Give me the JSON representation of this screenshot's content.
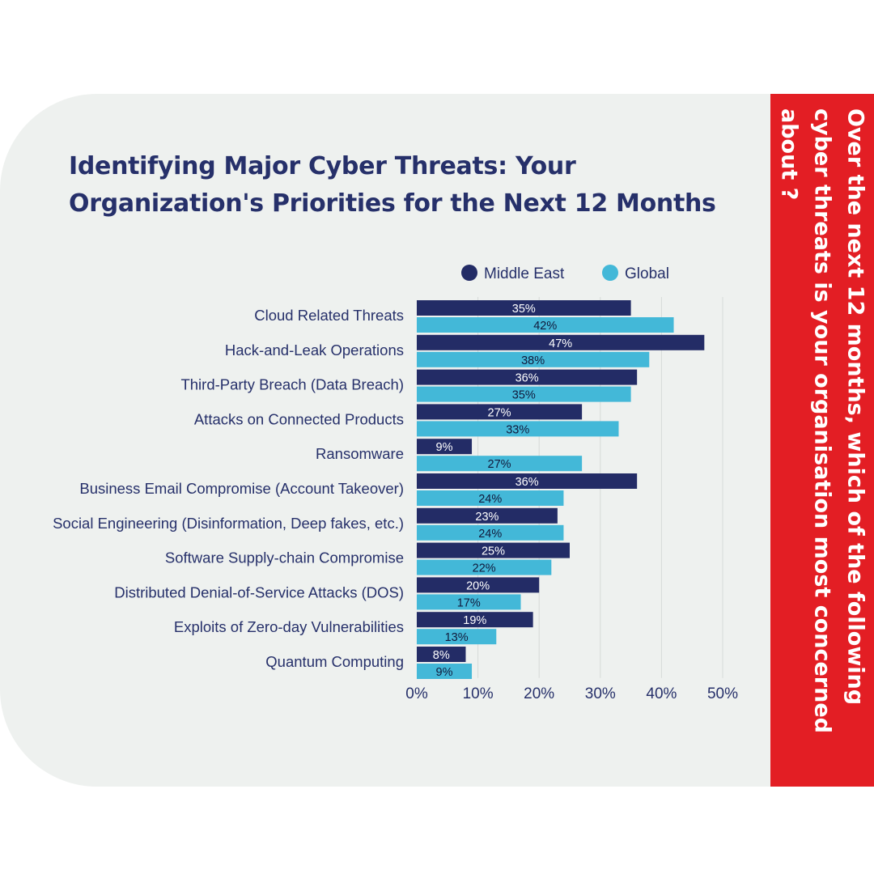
{
  "title": "Identifying Major Cyber Threats: Your Organization's Priorities for the Next 12 Months",
  "side_question": "Over the next 12 months, which of the following cyber threats is your organisation most concerned about ?",
  "colors": {
    "middle_east": "#232c66",
    "global": "#43b8d8",
    "accent_red": "#e31e24",
    "panel_bg": "#eef1ef",
    "text": "#26306a"
  },
  "chart_data": {
    "type": "bar",
    "orientation": "horizontal",
    "categories": [
      "Cloud Related Threats",
      "Hack-and-Leak Operations",
      "Third-Party Breach (Data Breach)",
      "Attacks on Connected Products",
      "Ransomware",
      "Business Email Compromise (Account Takeover)",
      "Social Engineering (Disinformation, Deep fakes, etc.)",
      "Software Supply-chain Compromise",
      "Distributed Denial-of-Service Attacks (DOS)",
      "Exploits of Zero-day Vulnerabilities",
      "Quantum Computing"
    ],
    "series": [
      {
        "name": "Middle East",
        "color": "#232c66",
        "values": [
          35,
          47,
          36,
          27,
          9,
          36,
          23,
          25,
          20,
          19,
          8
        ]
      },
      {
        "name": "Global",
        "color": "#43b8d8",
        "values": [
          42,
          38,
          35,
          33,
          27,
          24,
          24,
          22,
          17,
          13,
          9
        ]
      }
    ],
    "data_label_suffix": "%",
    "x_ticks": [
      "0%",
      "10%",
      "20%",
      "30%",
      "40%",
      "50%"
    ],
    "xlim": [
      0,
      50
    ],
    "grid": true,
    "legend_position": "top"
  }
}
